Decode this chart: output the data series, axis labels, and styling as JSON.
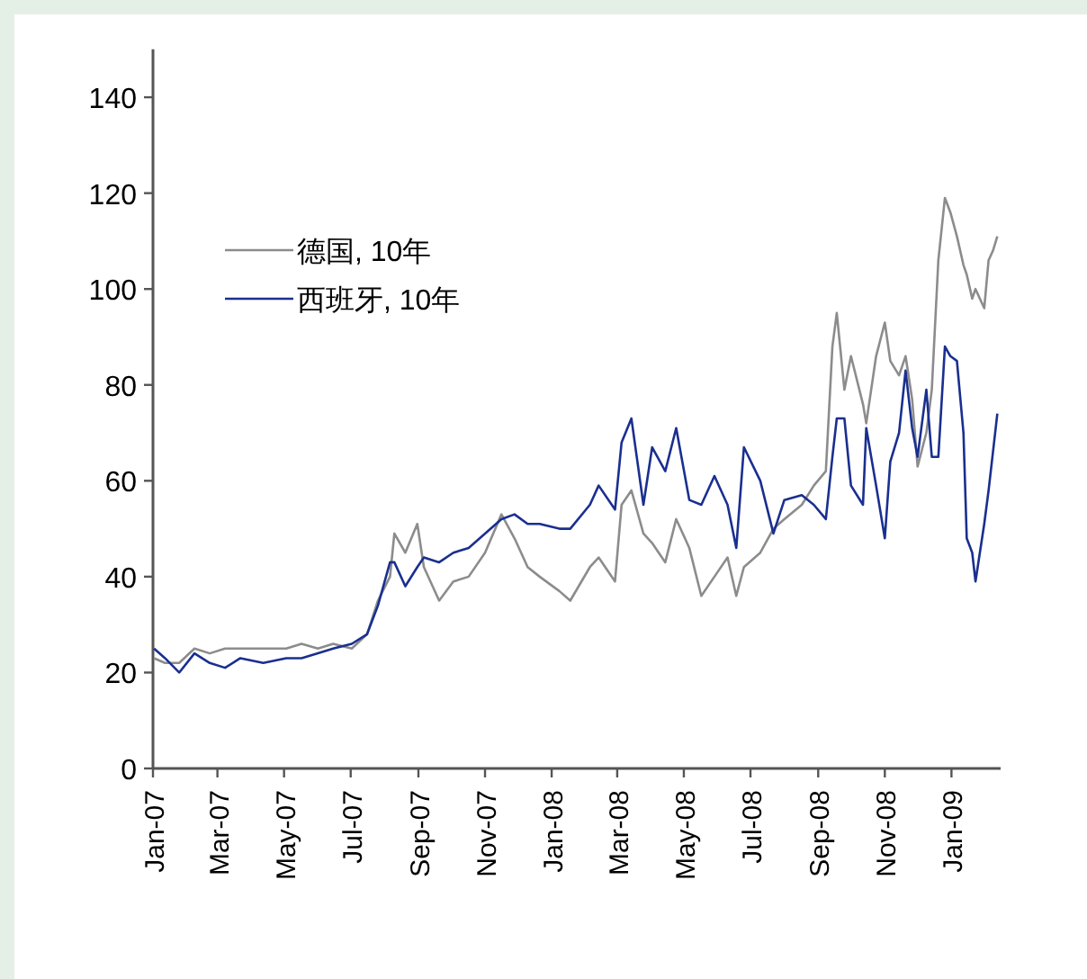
{
  "chart_data": {
    "type": "line",
    "legend": "top left",
    "x": [
      "2007-01-02",
      "2007-01-12",
      "2007-01-25",
      "2007-02-08",
      "2007-02-22",
      "2007-03-08",
      "2007-03-22",
      "2007-04-12",
      "2007-05-03",
      "2007-05-17",
      "2007-06-01",
      "2007-06-15",
      "2007-07-02",
      "2007-07-16",
      "2007-07-26",
      "2007-08-06",
      "2007-08-10",
      "2007-08-20",
      "2007-08-31",
      "2007-09-06",
      "2007-09-20",
      "2007-10-03",
      "2007-10-17",
      "2007-11-01",
      "2007-11-16",
      "2007-11-28",
      "2007-12-10",
      "2007-12-21",
      "2008-01-08",
      "2008-01-18",
      "2008-02-05",
      "2008-02-13",
      "2008-02-28",
      "2008-03-05",
      "2008-03-14",
      "2008-03-25",
      "2008-04-02",
      "2008-04-14",
      "2008-04-24",
      "2008-05-06",
      "2008-05-17",
      "2008-05-29",
      "2008-06-10",
      "2008-06-18",
      "2008-06-25",
      "2008-07-10",
      "2008-07-22",
      "2008-08-01",
      "2008-08-17",
      "2008-08-28",
      "2008-09-08",
      "2008-09-14",
      "2008-09-18",
      "2008-09-25",
      "2008-10-01",
      "2008-10-12",
      "2008-10-15",
      "2008-10-24",
      "2008-11-01",
      "2008-11-06",
      "2008-11-14",
      "2008-11-20",
      "2008-11-26",
      "2008-12-01",
      "2008-12-09",
      "2008-12-14",
      "2008-12-20",
      "2008-12-26",
      "2008-12-31",
      "2009-01-06",
      "2009-01-12",
      "2009-01-15",
      "2009-01-20",
      "2009-01-23",
      "2009-01-31",
      "2009-02-04",
      "2009-02-08",
      "2009-02-12"
    ],
    "series": [
      {
        "name": "德国, 10年",
        "color": "#8c8c8c",
        "values": [
          23,
          22,
          22,
          25,
          24,
          25,
          25,
          25,
          25,
          26,
          25,
          26,
          25,
          28,
          35,
          40,
          49,
          45,
          51,
          42,
          35,
          39,
          40,
          45,
          53,
          48,
          42,
          40,
          37,
          35,
          42,
          44,
          39,
          55,
          58,
          49,
          47,
          43,
          52,
          46,
          36,
          40,
          44,
          36,
          42,
          45,
          50,
          52,
          55,
          59,
          62,
          88,
          95,
          79,
          86,
          76,
          72,
          86,
          93,
          85,
          82,
          86,
          77,
          63,
          70,
          79,
          106,
          119,
          116,
          111,
          105,
          103,
          98,
          100,
          96,
          106,
          108,
          111
        ]
      },
      {
        "name": "西班牙, 10年",
        "color": "#1a2f8f",
        "values": [
          25,
          23,
          20,
          24,
          22,
          21,
          23,
          22,
          23,
          23,
          24,
          25,
          26,
          28,
          34,
          43,
          43,
          38,
          42,
          44,
          43,
          45,
          46,
          49,
          52,
          53,
          51,
          51,
          50,
          50,
          55,
          59,
          54,
          68,
          73,
          55,
          67,
          62,
          71,
          56,
          55,
          61,
          55,
          46,
          67,
          60,
          49,
          56,
          57,
          55,
          52,
          65,
          73,
          73,
          59,
          55,
          71,
          59,
          48,
          64,
          70,
          83,
          71,
          65,
          79,
          65,
          65,
          88,
          86,
          85,
          70,
          48,
          45,
          39,
          51,
          58,
          66,
          74
        ]
      }
    ],
    "xlim": [
      "2007-01-01",
      "2009-02-15"
    ],
    "xticks": [
      {
        "value": "2007-01-01",
        "label": "Jan-07"
      },
      {
        "value": "2007-03-01",
        "label": "Mar-07"
      },
      {
        "value": "2007-05-01",
        "label": "May-07"
      },
      {
        "value": "2007-07-01",
        "label": "Jul-07"
      },
      {
        "value": "2007-09-01",
        "label": "Sep-07"
      },
      {
        "value": "2007-11-01",
        "label": "Nov-07"
      },
      {
        "value": "2008-01-01",
        "label": "Jan-08"
      },
      {
        "value": "2008-03-01",
        "label": "Mar-08"
      },
      {
        "value": "2008-05-01",
        "label": "May-08"
      },
      {
        "value": "2008-07-01",
        "label": "Jul-08"
      },
      {
        "value": "2008-09-01",
        "label": "Sep-08"
      },
      {
        "value": "2008-11-01",
        "label": "Nov-08"
      },
      {
        "value": "2009-01-01",
        "label": "Jan-09"
      }
    ],
    "ylim": [
      0,
      150
    ],
    "yticks": [
      0,
      20,
      40,
      60,
      80,
      100,
      120,
      140
    ]
  }
}
